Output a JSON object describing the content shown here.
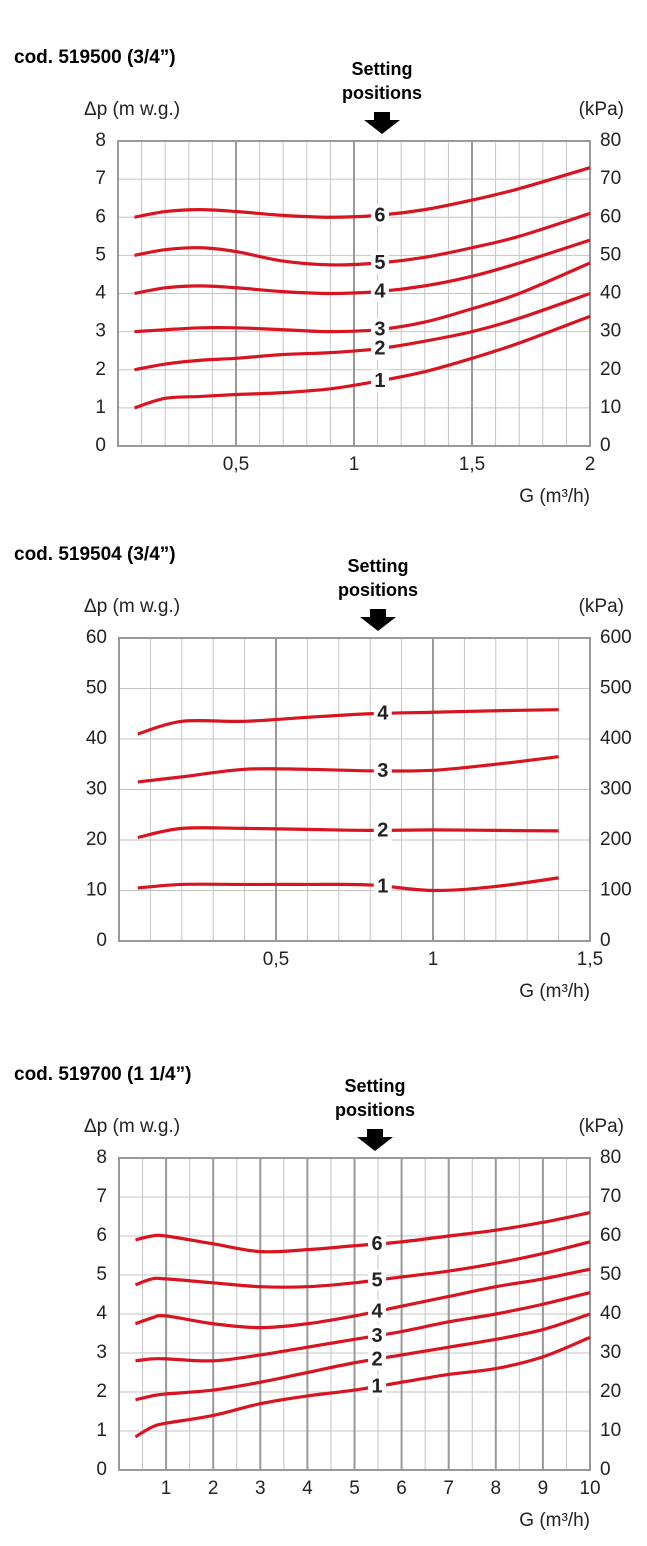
{
  "chart_data": [
    {
      "type": "line",
      "title": "cod. 519500 (3/4”)",
      "annotation": "Setting positions",
      "ylabel": "Δp (m w.g.)",
      "y2label": "(kPa)",
      "xlabel": "G (m³/h)",
      "grid": true,
      "xlim": [
        0,
        2
      ],
      "xticks": [
        {
          "value": 0.5,
          "label": "0,5"
        },
        1,
        {
          "value": 1.5,
          "label": "1,5"
        },
        2
      ],
      "ylim": [
        0,
        8
      ],
      "yticks": [
        0,
        1,
        2,
        3,
        4,
        5,
        6,
        7,
        8
      ],
      "y2lim": [
        0,
        80
      ],
      "y2ticks": [
        0,
        10,
        20,
        30,
        40,
        50,
        60,
        70,
        80
      ],
      "x": [
        0.07,
        0.2,
        0.35,
        0.5,
        0.7,
        0.9,
        1.1,
        1.3,
        1.5,
        1.7,
        2.0
      ],
      "series": [
        {
          "name": "6",
          "color": "#d7141f",
          "values": [
            6.0,
            6.15,
            6.2,
            6.15,
            6.05,
            6.0,
            6.05,
            6.2,
            6.45,
            6.75,
            7.3
          ]
        },
        {
          "name": "5",
          "color": "#d7141f",
          "values": [
            5.0,
            5.15,
            5.2,
            5.1,
            4.85,
            4.75,
            4.8,
            4.95,
            5.2,
            5.5,
            6.1
          ]
        },
        {
          "name": "4",
          "color": "#d7141f",
          "values": [
            4.0,
            4.15,
            4.2,
            4.15,
            4.05,
            4.0,
            4.05,
            4.2,
            4.45,
            4.8,
            5.4
          ]
        },
        {
          "name": "3",
          "color": "#d7141f",
          "values": [
            3.0,
            3.05,
            3.1,
            3.1,
            3.05,
            3.0,
            3.05,
            3.25,
            3.6,
            4.0,
            4.8
          ]
        },
        {
          "name": "2",
          "color": "#d7141f",
          "values": [
            2.0,
            2.15,
            2.25,
            2.3,
            2.4,
            2.45,
            2.55,
            2.75,
            3.0,
            3.35,
            4.0
          ]
        },
        {
          "name": "1",
          "color": "#d7141f",
          "values": [
            1.0,
            1.25,
            1.3,
            1.35,
            1.4,
            1.5,
            1.7,
            1.95,
            2.3,
            2.7,
            3.4
          ]
        }
      ]
    },
    {
      "type": "line",
      "title": "cod. 519504 (3/4”)",
      "annotation": "Setting positions",
      "ylabel": "Δp (m w.g.)",
      "y2label": "(kPa)",
      "xlabel": "G (m³/h)",
      "grid": true,
      "xlim": [
        0,
        1.5
      ],
      "xticks": [
        {
          "value": 0.5,
          "label": "0,5"
        },
        1,
        {
          "value": 1.5,
          "label": "1,5"
        }
      ],
      "ylim": [
        0,
        60
      ],
      "yticks": [
        0,
        10,
        20,
        30,
        40,
        50,
        60
      ],
      "y2lim": [
        0,
        600
      ],
      "y2ticks": [
        0,
        100,
        200,
        300,
        400,
        500,
        600
      ],
      "x": [
        0.06,
        0.2,
        0.4,
        0.6,
        0.8,
        1.0,
        1.2,
        1.4
      ],
      "series": [
        {
          "name": "4",
          "color": "#d7141f",
          "values": [
            41,
            43.5,
            43.5,
            44.3,
            45,
            45.3,
            45.6,
            45.8
          ]
        },
        {
          "name": "3",
          "color": "#d7141f",
          "values": [
            31.5,
            32.5,
            34,
            34,
            33.7,
            33.8,
            35,
            36.5
          ]
        },
        {
          "name": "2",
          "color": "#d7141f",
          "values": [
            20.5,
            22.3,
            22.3,
            22.1,
            21.9,
            22,
            21.9,
            21.8
          ]
        },
        {
          "name": "1",
          "color": "#d7141f",
          "values": [
            10.5,
            11.2,
            11.2,
            11.2,
            11.1,
            10,
            10.8,
            12.5
          ]
        }
      ]
    },
    {
      "type": "line",
      "title": "cod. 519700 (1 1/4”)",
      "annotation": "Setting positions",
      "ylabel": "Δp (m w.g.)",
      "y2label": "(kPa)",
      "xlabel": "G (m³/h)",
      "grid": true,
      "xlim": [
        0,
        10
      ],
      "xticks": [
        1,
        2,
        3,
        4,
        5,
        6,
        7,
        8,
        9,
        10
      ],
      "ylim": [
        0,
        8
      ],
      "yticks": [
        0,
        1,
        2,
        3,
        4,
        5,
        6,
        7,
        8
      ],
      "y2lim": [
        0,
        80
      ],
      "y2ticks": [
        0,
        10,
        20,
        30,
        40,
        50,
        60,
        70,
        80
      ],
      "x": [
        0.35,
        0.7,
        1,
        2,
        3,
        4,
        5,
        6,
        7,
        8,
        9,
        10
      ],
      "series": [
        {
          "name": "6",
          "color": "#d7141f",
          "values": [
            5.9,
            6.0,
            6.0,
            5.8,
            5.6,
            5.65,
            5.75,
            5.85,
            6.0,
            6.15,
            6.35,
            6.6
          ]
        },
        {
          "name": "5",
          "color": "#d7141f",
          "values": [
            4.75,
            4.9,
            4.9,
            4.8,
            4.7,
            4.7,
            4.8,
            4.95,
            5.1,
            5.3,
            5.55,
            5.85
          ]
        },
        {
          "name": "4",
          "color": "#d7141f",
          "values": [
            3.75,
            3.9,
            3.95,
            3.75,
            3.65,
            3.75,
            3.95,
            4.2,
            4.45,
            4.7,
            4.9,
            5.15
          ]
        },
        {
          "name": "3",
          "color": "#d7141f",
          "values": [
            2.8,
            2.85,
            2.85,
            2.8,
            2.95,
            3.15,
            3.35,
            3.55,
            3.8,
            4.0,
            4.25,
            4.55
          ]
        },
        {
          "name": "2",
          "color": "#d7141f",
          "values": [
            1.8,
            1.9,
            1.95,
            2.05,
            2.25,
            2.5,
            2.75,
            2.95,
            3.15,
            3.35,
            3.6,
            4.0
          ]
        },
        {
          "name": "1",
          "color": "#d7141f",
          "values": [
            0.85,
            1.1,
            1.2,
            1.4,
            1.7,
            1.9,
            2.05,
            2.25,
            2.45,
            2.6,
            2.9,
            3.4
          ]
        }
      ]
    }
  ]
}
